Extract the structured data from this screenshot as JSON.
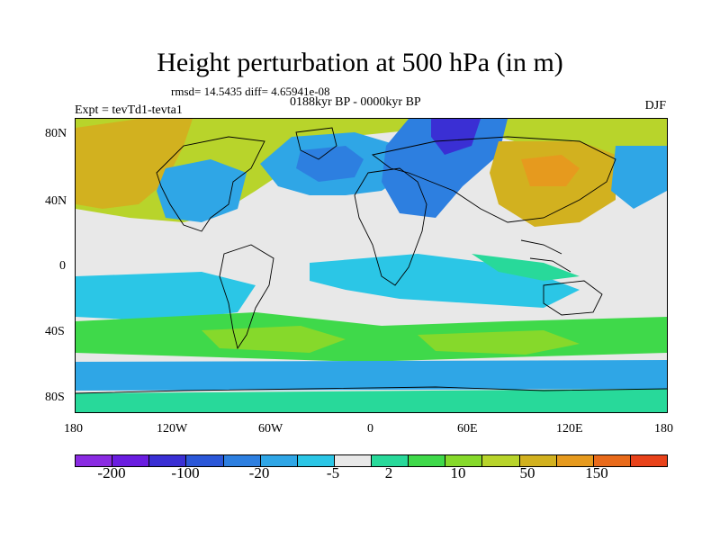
{
  "plot": {
    "title": "Height perturbation at 500 hPa (in m)",
    "stats": "rmsd= 14.5435 diff= 4.65941e-08",
    "period": "0188kyr BP - 0000kyr BP",
    "experiment": "Expt = tevTd1-tevta1",
    "season": "DJF"
  },
  "axes": {
    "lon_ticks": [
      "180",
      "120W",
      "60W",
      "0",
      "60E",
      "120E",
      "180"
    ],
    "lat_ticks": [
      "80N",
      "40N",
      "0",
      "40S",
      "80S"
    ]
  },
  "colorbar": {
    "colors": [
      "#8a2be2",
      "#6a1de0",
      "#3a2fd4",
      "#2b57d8",
      "#2d7fe0",
      "#2fa6e6",
      "#2bc6e6",
      "#e8e8e8",
      "#28d99a",
      "#3fd94a",
      "#86d92b",
      "#b8d42b",
      "#d2b11f",
      "#e69a1e",
      "#e86a1a",
      "#e8421a"
    ],
    "labels": [
      "-200",
      "-100",
      "-20",
      "-5",
      "2",
      "10",
      "50",
      "150"
    ]
  },
  "fields": {
    "background": "#e8e8e8",
    "highs": [
      "#b8d42b",
      "#d2b11f",
      "#e69a1e"
    ],
    "lows": [
      "#2fa6e6",
      "#2d7fe0",
      "#3a2fd4"
    ]
  }
}
